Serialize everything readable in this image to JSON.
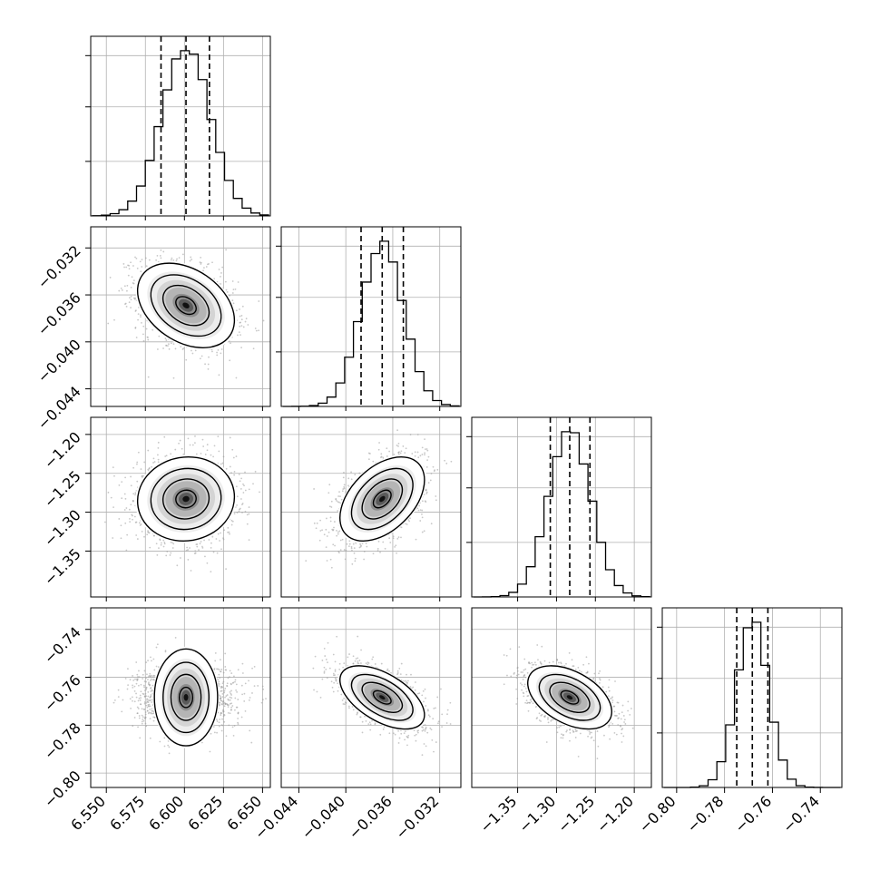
{
  "chart_data": {
    "type": "corner",
    "title": "",
    "grid": true,
    "colors": {
      "frame": "#000000",
      "grid": "#b0b0b0",
      "scatter": "#9a9a9a",
      "contour": "#000000",
      "quantile_line": "#000000"
    },
    "parameters": [
      {
        "label": "",
        "range": [
          6.54,
          6.655
        ],
        "ticks": [
          6.55,
          6.575,
          6.6,
          6.625,
          6.65
        ],
        "tick_labels": [
          "6.550",
          "6.575",
          "6.600",
          "6.625",
          "6.650"
        ],
        "center": 6.601,
        "sd": 0.0155,
        "quantiles": [
          6.585,
          6.601,
          6.616
        ]
      },
      {
        "label": "",
        "range": [
          -0.0455,
          -0.0302
        ],
        "ticks": [
          -0.044,
          -0.04,
          -0.036,
          -0.032
        ],
        "tick_labels": [
          "−0.044",
          "−0.040",
          "−0.036",
          "−0.032"
        ],
        "center": -0.0369,
        "sd": 0.0018,
        "quantiles": [
          -0.0387,
          -0.0369,
          -0.0351
        ]
      },
      {
        "label": "",
        "range": [
          -1.409,
          -1.178
        ],
        "ticks": [
          -1.35,
          -1.3,
          -1.25,
          -1.2
        ],
        "tick_labels": [
          "−1.35",
          "−1.30",
          "−1.25",
          "−1.20"
        ],
        "center": -1.283,
        "sd": 0.027,
        "quantiles": [
          -1.308,
          -1.283,
          -1.257
        ]
      },
      {
        "label": "",
        "range": [
          -0.806,
          -0.731
        ],
        "ticks": [
          -0.8,
          -0.78,
          -0.76,
          -0.74
        ],
        "tick_labels": [
          "−0.80",
          "−0.78",
          "−0.76",
          "−0.74"
        ],
        "center": -0.7684,
        "sd": 0.0066,
        "quantiles": [
          -0.7749,
          -0.7684,
          -0.7619
        ]
      }
    ],
    "correlations": [
      [
        1.0,
        -0.35,
        0.05,
        0.0
      ],
      [
        -0.35,
        1.0,
        0.45,
        -0.55
      ],
      [
        0.05,
        0.45,
        1.0,
        -0.45
      ],
      [
        0.0,
        -0.55,
        -0.45,
        1.0
      ]
    ],
    "histogram_bins": 20,
    "contour_levels": [
      "0.5 sigma",
      "1 sigma",
      "1.5 sigma",
      "2 sigma"
    ]
  }
}
